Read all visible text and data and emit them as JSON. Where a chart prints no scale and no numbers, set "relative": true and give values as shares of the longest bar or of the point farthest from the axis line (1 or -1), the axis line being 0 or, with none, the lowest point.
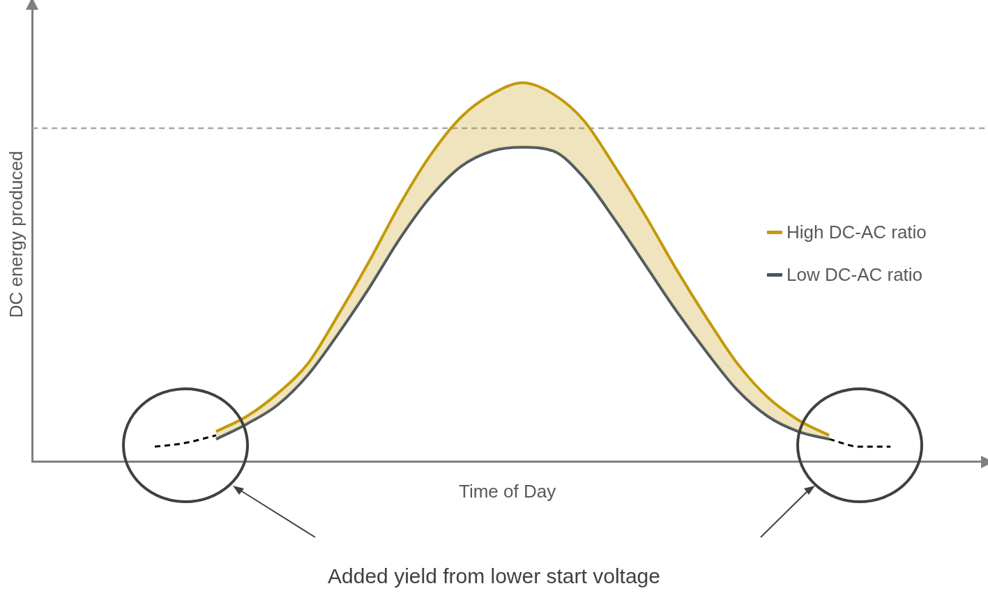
{
  "chart_data": {
    "type": "line",
    "relative": true,
    "ylabel": "DC energy produced",
    "xlabel": "Time of Day",
    "categories": [
      null,
      null,
      null,
      null,
      null,
      null,
      null,
      null,
      null,
      null,
      null,
      null,
      null,
      null,
      null,
      null,
      null,
      null,
      null,
      null,
      null,
      null,
      null,
      null,
      null,
      null,
      null,
      null,
      null,
      null,
      null,
      null
    ],
    "series": [
      {
        "name": "High DC-AC ratio",
        "color": "#c49a0a",
        "values": [
          null,
          null,
          null,
          null,
          null,
          null,
          0.08,
          0.12,
          0.18,
          0.26,
          0.39,
          0.53,
          0.68,
          0.81,
          0.91,
          0.97,
          1,
          0.97,
          0.9,
          0.78,
          0.65,
          0.51,
          0.38,
          0.26,
          0.17,
          0.11,
          0.07,
          null,
          null,
          null,
          null,
          null
        ],
        "lower": [
          null,
          null,
          null,
          null,
          null,
          null,
          0.06,
          0.1,
          0.15,
          0.23,
          0.34,
          0.46,
          0.59,
          0.7,
          0.78,
          0.82,
          0.83,
          0.82,
          0.75,
          0.64,
          0.52,
          0.4,
          0.29,
          0.19,
          0.12,
          0.08,
          0.06,
          null,
          null,
          null,
          null,
          null
        ],
        "upper": [
          null,
          null,
          null,
          null,
          null,
          null,
          0.08,
          0.12,
          0.18,
          0.26,
          0.39,
          0.53,
          0.68,
          0.81,
          0.91,
          0.97,
          1,
          0.97,
          0.9,
          0.78,
          0.65,
          0.51,
          0.38,
          0.26,
          0.17,
          0.11,
          0.07,
          null,
          null,
          null,
          null,
          null
        ]
      },
      {
        "name": "Low DC-AC ratio",
        "color": "#44546a",
        "values": [
          null,
          null,
          null,
          null,
          null,
          null,
          0.06,
          0.1,
          0.15,
          0.23,
          0.34,
          0.46,
          0.59,
          0.7,
          0.78,
          0.82,
          0.83,
          0.82,
          0.75,
          0.64,
          0.52,
          0.4,
          0.29,
          0.19,
          0.12,
          0.08,
          0.06,
          null,
          null,
          null,
          null,
          null
        ]
      },
      {
        "color": "#000000",
        "line_style": "dashed",
        "values": [
          null,
          null,
          null,
          null,
          0.04,
          0.05,
          0.07,
          null,
          null,
          null,
          null,
          null,
          null,
          null,
          null,
          null,
          null,
          null,
          null,
          null,
          null,
          null,
          null,
          null,
          null,
          null,
          0.06,
          0.04,
          0.04,
          null,
          null,
          null
        ]
      }
    ],
    "ref_lines": [
      {
        "axis": "y",
        "value": 0.88,
        "color": "#a6a6a6",
        "line_style": "dashed"
      }
    ],
    "legend": "right",
    "grid": false,
    "marker": "none",
    "annotations": [
      "Added yield from lower start voltage"
    ]
  }
}
